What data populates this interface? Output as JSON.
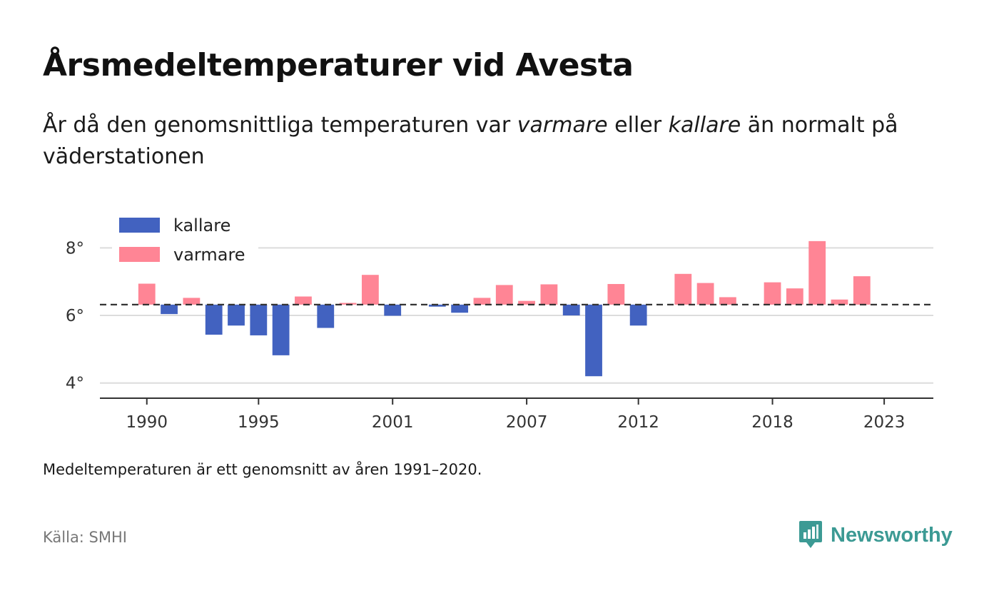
{
  "title": "Årsmedeltemperaturer vid Avesta",
  "subtitle": {
    "part1": "År då den genomsnittliga temperaturen var ",
    "warm_word": "varmare",
    "part2": " eller ",
    "cold_word": "kallare",
    "part3": " än normalt på väderstationen"
  },
  "note": "Medeltemperaturen är ett genomsnitt av åren 1991–2020.",
  "source": "Källa: SMHI",
  "brand": {
    "name": "Newsworthy",
    "icon": "newsworthy-logo-icon",
    "color": "#3c9a94"
  },
  "chart_data": {
    "type": "bar",
    "baseline": 6.32,
    "ylim": [
      3.55,
      9.0
    ],
    "xlim": [
      1987.9,
      2025.2
    ],
    "yticks": [
      4,
      6,
      8
    ],
    "ytick_labels": [
      "4°",
      "6°",
      "8°"
    ],
    "xticks": [
      1990,
      1995,
      2001,
      2007,
      2012,
      2018,
      2023
    ],
    "xtick_labels": [
      "1990",
      "1995",
      "2001",
      "2007",
      "2012",
      "2018",
      "2023"
    ],
    "grid": true,
    "legend": [
      {
        "label": "kallare",
        "color": "#4262c0"
      },
      {
        "label": "varmare",
        "color": "#ff8595"
      }
    ],
    "legend_position": "top-left",
    "colors": {
      "cold": "#4262c0",
      "warm": "#ff8595"
    },
    "x": [
      1990,
      1991,
      1992,
      1993,
      1994,
      1995,
      1996,
      1997,
      1998,
      1999,
      2000,
      2001,
      2002,
      2003,
      2004,
      2005,
      2006,
      2007,
      2008,
      2009,
      2010,
      2011,
      2012,
      2013,
      2014,
      2015,
      2016,
      2017,
      2018,
      2019,
      2020,
      2021,
      2022,
      2023
    ],
    "values": [
      6.94,
      6.04,
      6.52,
      5.43,
      5.7,
      5.41,
      4.82,
      6.56,
      5.63,
      6.37,
      7.2,
      5.99,
      6.32,
      6.26,
      6.08,
      6.52,
      6.9,
      6.43,
      6.92,
      6.0,
      4.2,
      6.93,
      5.7,
      6.32,
      7.23,
      6.96,
      6.54,
      6.32,
      6.98,
      6.8,
      8.2,
      6.47,
      7.16,
      6.32
    ]
  }
}
